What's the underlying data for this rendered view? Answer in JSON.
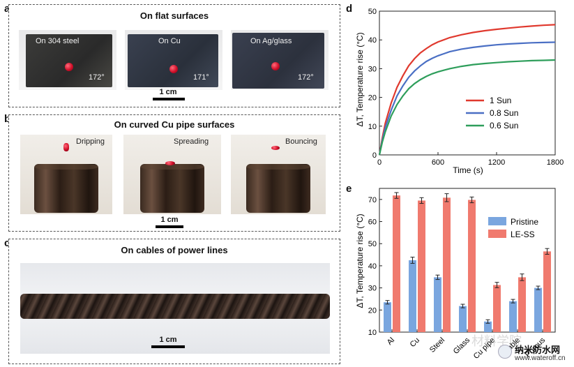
{
  "panels": {
    "a": {
      "letter": "a",
      "title": "On flat surfaces",
      "samples": [
        {
          "label": "On 304 steel",
          "angle": "172°"
        },
        {
          "label": "On Cu",
          "angle": "171°"
        },
        {
          "label": "On Ag/glass",
          "angle": "172°"
        }
      ],
      "scale": "1 cm"
    },
    "b": {
      "letter": "b",
      "title": "On curved Cu pipe surfaces",
      "frames": [
        {
          "label": "Dripping"
        },
        {
          "label": "Spreading"
        },
        {
          "label": "Bouncing"
        }
      ],
      "scale": "1 cm"
    },
    "c": {
      "letter": "c",
      "title": "On cables of power lines",
      "scale": "1 cm"
    },
    "d": {
      "letter": "d"
    },
    "e": {
      "letter": "e"
    }
  },
  "watermark": {
    "text1": "纳米防水网",
    "text2": "www.wateroff.cn",
    "faint": "材料学院"
  },
  "chart_data": [
    {
      "type": "line",
      "xlabel": "Time (s)",
      "ylabel": "ΔT, Temperature rise (°C)",
      "xlim": [
        0,
        1800
      ],
      "ylim": [
        0,
        50
      ],
      "xticks": [
        0,
        600,
        1200,
        1800
      ],
      "yticks": [
        0,
        10,
        20,
        30,
        40,
        50
      ],
      "legend_position": "center-right",
      "series": [
        {
          "name": "1 Sun",
          "color": "#e0392e",
          "x": [
            0,
            30,
            60,
            120,
            180,
            240,
            300,
            360,
            420,
            480,
            540,
            600,
            720,
            840,
            960,
            1080,
            1200,
            1320,
            1440,
            1560,
            1680,
            1800
          ],
          "y": [
            0,
            6,
            11,
            18,
            23.5,
            27.5,
            31,
            33.5,
            35.5,
            37,
            38.3,
            39.3,
            40.8,
            41.8,
            42.6,
            43.2,
            43.7,
            44.1,
            44.5,
            44.8,
            45.1,
            45.3
          ]
        },
        {
          "name": "0.8 Sun",
          "color": "#4a6fc4",
          "x": [
            0,
            30,
            60,
            120,
            180,
            240,
            300,
            360,
            420,
            480,
            540,
            600,
            720,
            840,
            960,
            1080,
            1200,
            1320,
            1440,
            1560,
            1680,
            1800
          ],
          "y": [
            0,
            5.2,
            9.5,
            15.5,
            20.5,
            24,
            27,
            29.2,
            31,
            32.5,
            33.6,
            34.5,
            35.9,
            36.8,
            37.4,
            37.9,
            38.3,
            38.6,
            38.8,
            39,
            39.1,
            39.2
          ]
        },
        {
          "name": "0.6 Sun",
          "color": "#2e9e5b",
          "x": [
            0,
            30,
            60,
            120,
            180,
            240,
            300,
            360,
            420,
            480,
            540,
            600,
            720,
            840,
            960,
            1080,
            1200,
            1320,
            1440,
            1560,
            1680,
            1800
          ],
          "y": [
            0,
            4.5,
            8,
            13.5,
            17.5,
            20.5,
            23,
            24.8,
            26.2,
            27.3,
            28.2,
            28.9,
            30,
            30.8,
            31.4,
            31.8,
            32.1,
            32.4,
            32.6,
            32.8,
            32.9,
            33
          ]
        }
      ]
    },
    {
      "type": "bar",
      "xlabel": "",
      "ylabel": "ΔT, Temperature rise (°C)",
      "ylim": [
        10,
        75
      ],
      "yticks": [
        10,
        20,
        30,
        40,
        50,
        60,
        70
      ],
      "legend_position": "center-right",
      "categories": [
        "Al",
        "Cu",
        "Steel",
        "Glass",
        "Cu pipe",
        "Cable",
        "Porous"
      ],
      "series": [
        {
          "name": "Pristine",
          "color": "#7aa6df",
          "values": [
            23.5,
            42.5,
            34.8,
            21.8,
            14.8,
            24,
            30
          ],
          "errors": [
            0.8,
            1.4,
            1.0,
            0.8,
            0.8,
            0.8,
            0.8
          ]
        },
        {
          "name": "LE-SS",
          "color": "#f07a6e",
          "values": [
            71.8,
            69.5,
            70.8,
            69.8,
            31.3,
            34.8,
            46.5
          ],
          "errors": [
            1.3,
            1.3,
            1.8,
            1.3,
            1.2,
            1.5,
            1.3
          ]
        }
      ]
    }
  ]
}
